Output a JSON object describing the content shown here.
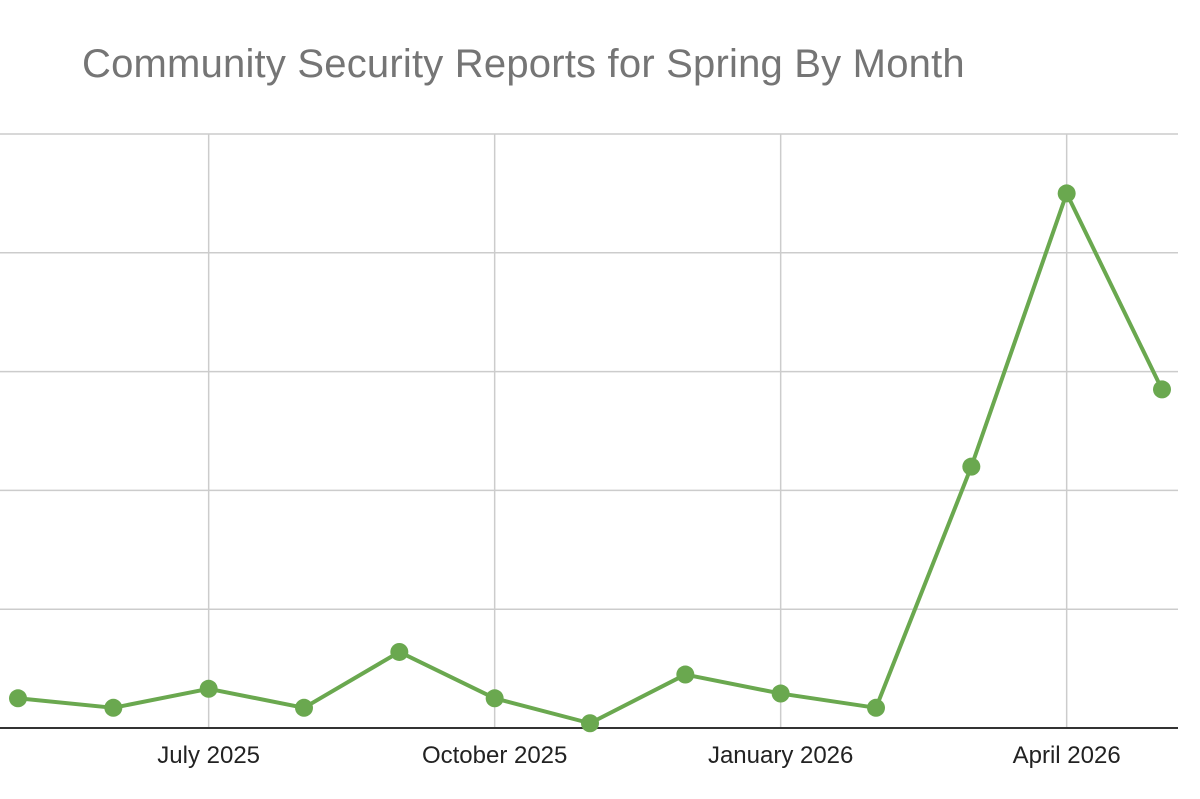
{
  "chart_data": {
    "type": "line",
    "title": "Community Security Reports for Spring By Month",
    "xlabel": "",
    "ylabel": "",
    "x": [
      "2025-05",
      "2025-06",
      "2025-07",
      "2025-08",
      "2025-09",
      "2025-10",
      "2025-11",
      "2025-12",
      "2026-01",
      "2026-02",
      "2026-03",
      "2026-04",
      "2026-05"
    ],
    "series": [
      {
        "values": [
          25,
          17,
          33,
          17,
          64,
          25,
          4,
          45,
          29,
          17,
          220,
          450,
          285
        ]
      }
    ],
    "x_ticks": [
      {
        "x": "2025-07",
        "label": "July 2025"
      },
      {
        "x": "2025-10",
        "label": "October 2025"
      },
      {
        "x": "2026-01",
        "label": "January 2026"
      },
      {
        "x": "2026-04",
        "label": "April 2026"
      }
    ],
    "ylim": [
      0,
      500
    ],
    "y_gridlines": [
      100,
      200,
      300,
      400,
      500
    ],
    "y_tick_labels_shown": false,
    "grid": true,
    "legend": "none",
    "colors": {
      "line": "#6aa84f",
      "grid": "#cccccc",
      "axis": "#333333",
      "title": "#757575"
    }
  }
}
